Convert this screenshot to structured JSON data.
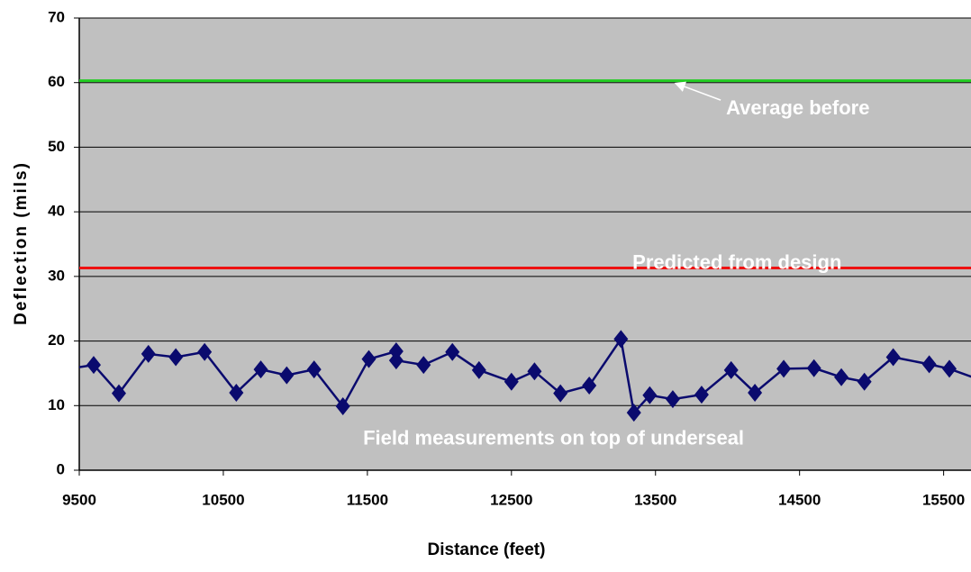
{
  "chart_data": {
    "type": "line",
    "xlabel": "Distance (feet)",
    "ylabel": "Deflection (mils)",
    "xlim": [
      9500,
      15690
    ],
    "ylim": [
      0,
      70
    ],
    "xticks": [
      9500,
      10500,
      11500,
      12500,
      13500,
      14500,
      15500
    ],
    "yticks": [
      0,
      10,
      20,
      30,
      40,
      50,
      60,
      70
    ],
    "grid": true,
    "background": "#c0c0c0",
    "x": [
      9400,
      9600,
      9775,
      9980,
      10170,
      10370,
      10590,
      10760,
      10940,
      11130,
      11330,
      11510,
      11700,
      11700,
      11890,
      12090,
      12275,
      12500,
      12660,
      12840,
      13040,
      13260,
      13350,
      13460,
      13620,
      13820,
      14025,
      14190,
      14390,
      14600,
      14790,
      14950,
      15150,
      15400,
      15540,
      15800
    ],
    "series": [
      {
        "color": "#0a0a6e",
        "values": [
          15.6,
          16.3,
          11.9,
          18.0,
          17.5,
          18.3,
          12.0,
          15.6,
          14.7,
          15.6,
          9.9,
          17.2,
          18.4,
          17.0,
          16.3,
          18.3,
          15.5,
          13.7,
          15.3,
          11.9,
          13.1,
          20.3,
          8.9,
          11.6,
          11.0,
          11.7,
          15.5,
          12.0,
          15.7,
          15.8,
          14.4,
          13.7,
          17.5,
          16.4,
          15.7,
          13.6
        ]
      }
    ],
    "reference_lines": [
      {
        "value": 60.3,
        "color": "#22cc22",
        "label": "Average before",
        "label_x": 13990,
        "label_y": 55.9,
        "arrow_x": 13640
      },
      {
        "value": 31.3,
        "color": "#ee1111",
        "label": "Predicted from design",
        "label_x": 13340,
        "label_y": 32
      }
    ],
    "annotations": [
      {
        "text": "Field measurements on top of underseal",
        "x": 11470,
        "y": 4.8
      }
    ]
  }
}
